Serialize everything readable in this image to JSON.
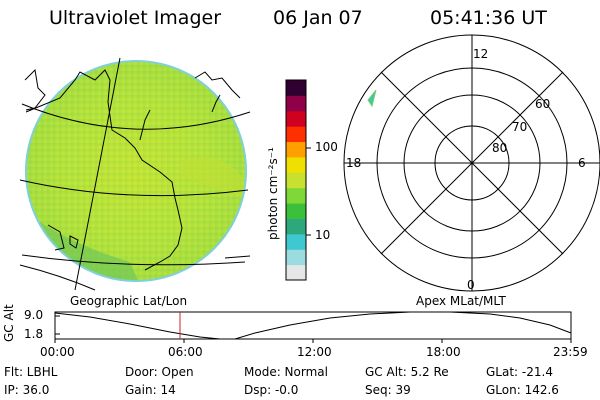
{
  "header": {
    "title": "Ultraviolet Imager",
    "date": "06 Jan 07",
    "time": "05:41:36 UT"
  },
  "colorbar": {
    "unit_label": "photon cm⁻²s⁻¹",
    "ticks": [
      "100",
      "10"
    ],
    "scale": "log",
    "colors": [
      "#e6e6e6",
      "#9adce0",
      "#3ec8d0",
      "#2ca87c",
      "#3cc03c",
      "#80d838",
      "#c8e030",
      "#f0e000",
      "#ffa000",
      "#ff3000",
      "#d00020",
      "#900048",
      "#300030"
    ]
  },
  "left_map": {
    "label": "Geographic Lat/Lon",
    "fill_color": "#b8e43c"
  },
  "polar_plot": {
    "label": "Apex MLat/MLT",
    "mlt_labels": [
      "12",
      "18",
      "6",
      "0"
    ],
    "lat_labels": [
      "60",
      "70",
      "80"
    ]
  },
  "altitude_plot": {
    "ylabel": "GC Alt",
    "yticks": [
      "9.0",
      "1.8"
    ],
    "xticks": [
      "00:00",
      "06:00",
      "12:00",
      "18:00",
      "23:59"
    ],
    "current_marker": "05:41"
  },
  "info": {
    "flt": "Flt: LBHL",
    "ip": "IP: 36.0",
    "door": "Door: Open",
    "gain": "Gain: 14",
    "mode": "Mode: Normal",
    "dsp": "Dsp:   -0.0",
    "gc_alt": "GC Alt: 5.2 Re",
    "seq": "Seq: 39",
    "glat": "GLat: -21.4",
    "glon": "GLon: 142.6"
  }
}
